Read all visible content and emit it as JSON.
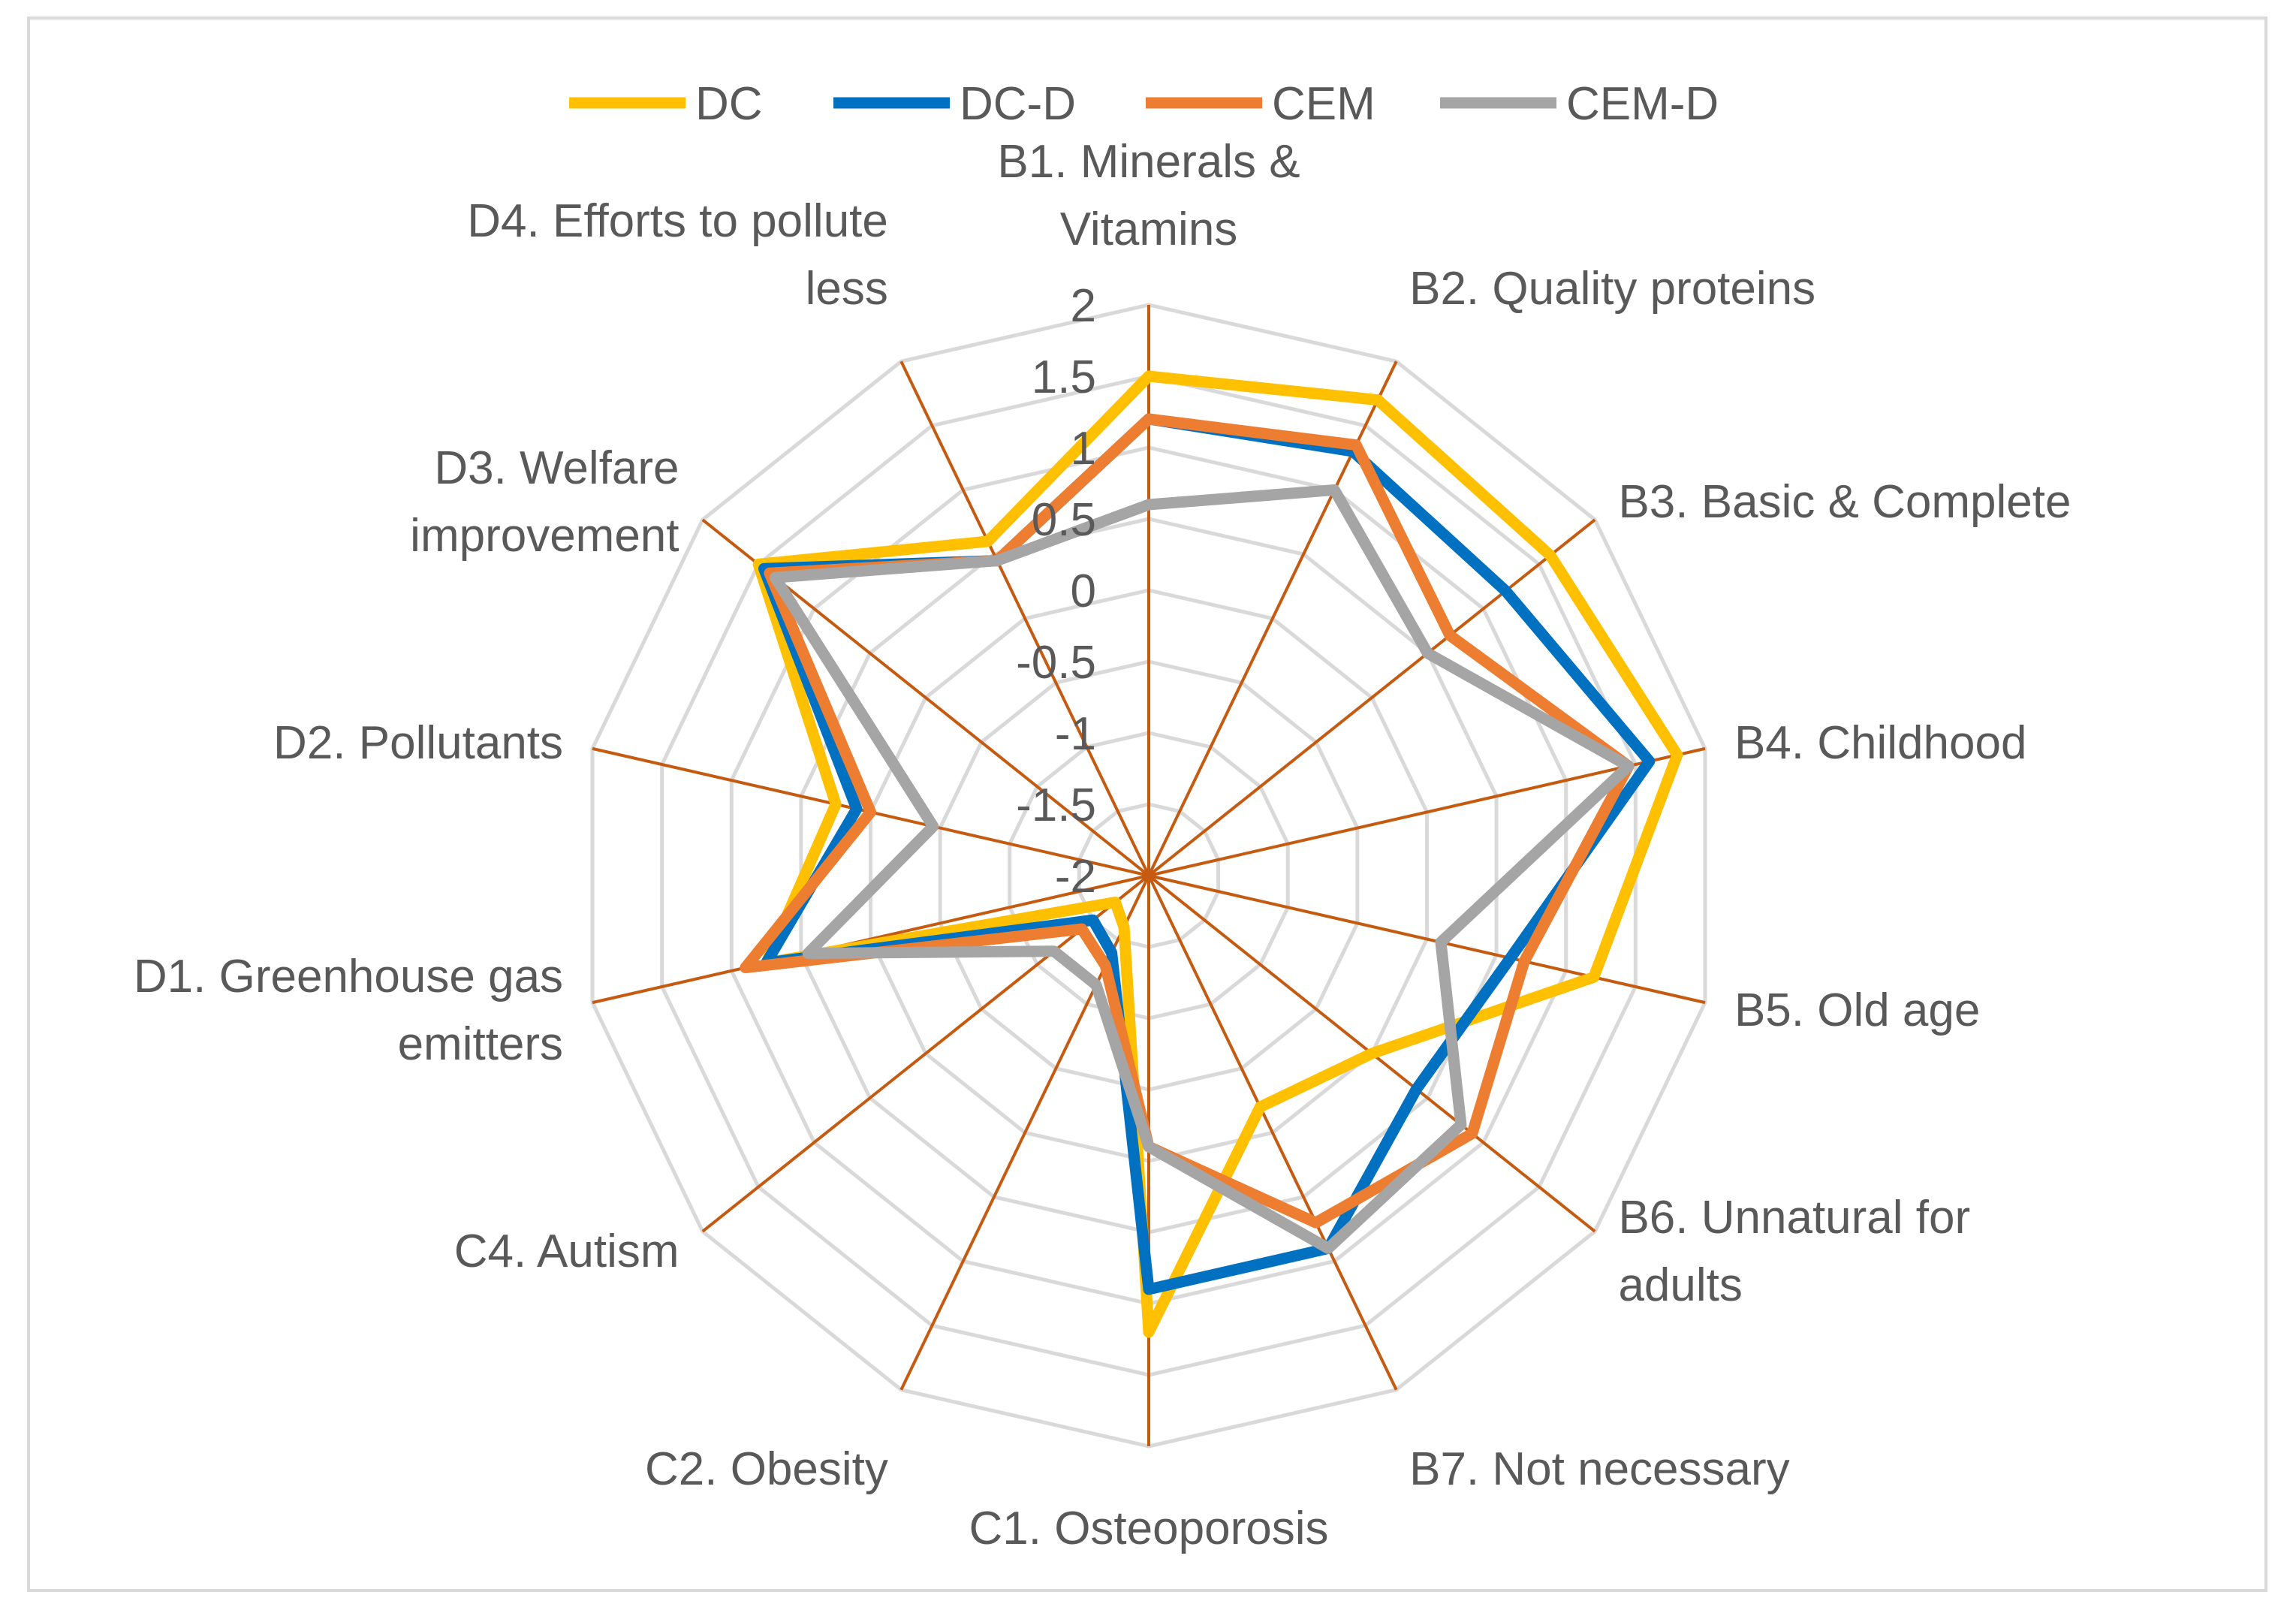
{
  "chart_data": {
    "type": "radar",
    "axes": [
      {
        "label": [
          "B1. Minerals &",
          "Vitamins"
        ]
      },
      {
        "label": [
          "B2. Quality proteins"
        ]
      },
      {
        "label": [
          "B3. Basic & Complete"
        ]
      },
      {
        "label": [
          "B4. Childhood"
        ]
      },
      {
        "label": [
          "B5. Old age"
        ]
      },
      {
        "label": [
          "B6. Unnatural for",
          "adults"
        ]
      },
      {
        "label": [
          "B7. Not necessary"
        ]
      },
      {
        "label": [
          "C1. Osteoporosis"
        ]
      },
      {
        "label": [
          "C2. Obesity"
        ]
      },
      {
        "label": [
          "C4. Autism"
        ]
      },
      {
        "label": [
          "D1. Greenhouse gas",
          "emitters"
        ]
      },
      {
        "label": [
          "D2. Pollutants"
        ]
      },
      {
        "label": [
          "D3. Welfare",
          "improvement"
        ]
      },
      {
        "label": [
          "D4. Efforts to pollute",
          "less"
        ]
      }
    ],
    "rlim": [
      -2,
      2
    ],
    "ticks": [
      "2",
      "1.5",
      "1",
      "0.5",
      "0",
      "-0.5",
      "-1",
      "-1.5",
      "-2"
    ],
    "tick_values": [
      2,
      1.5,
      1,
      0.5,
      0,
      -0.5,
      -1,
      -1.5,
      -2
    ],
    "legend_position": "top",
    "grid": true,
    "series": [
      {
        "name": "DC",
        "color": "#FFC000",
        "values": [
          1.5,
          1.7,
          1.6,
          1.8,
          1.2,
          0.0,
          -0.2,
          1.2,
          -1.6,
          -1.7,
          0.75,
          0.25,
          1.5,
          0.6
        ]
      },
      {
        "name": "DC-D",
        "color": "#0070C0",
        "values": [
          1.2,
          1.3,
          1.2,
          1.6,
          0.6,
          0.4,
          0.9,
          0.9,
          -1.4,
          -1.5,
          0.75,
          0.1,
          1.45,
          0.45
        ]
      },
      {
        "name": "CEM",
        "color": "#ED7D31",
        "values": [
          1.2,
          1.35,
          0.7,
          1.45,
          0.7,
          0.9,
          0.7,
          -0.1,
          -1.3,
          -1.4,
          0.9,
          0.0,
          1.4,
          0.45
        ]
      },
      {
        "name": "CEM-D",
        "color": "#A5A5A5",
        "values": [
          0.6,
          1.0,
          0.5,
          1.45,
          0.1,
          0.8,
          0.9,
          -0.1,
          -1.15,
          -1.15,
          0.45,
          -0.45,
          1.35,
          0.45
        ]
      }
    ],
    "spoke_color": "#C55A11",
    "grid_color": "#D9D9D9"
  }
}
